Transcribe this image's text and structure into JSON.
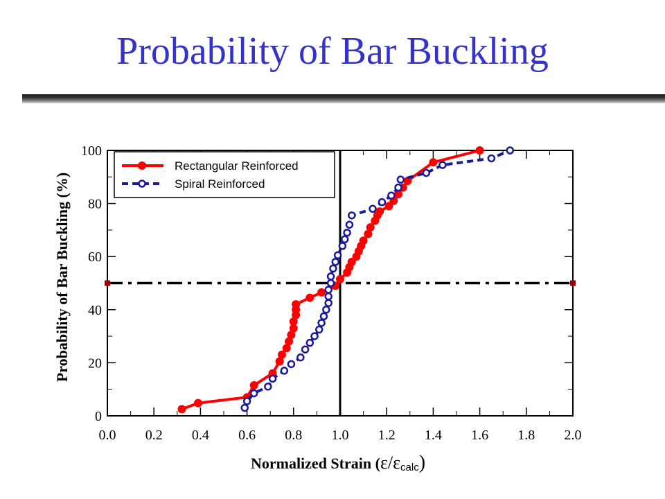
{
  "slide": {
    "title": "Probability of Bar Buckling"
  },
  "chart_data": {
    "type": "line",
    "title": "",
    "xlabel_main": "Normalized Strain (",
    "xlabel_eps": "ε",
    "xlabel_slash": "/",
    "xlabel_eps2": "ε",
    "xlabel_sub": "calc",
    "xlabel_close": ")",
    "ylabel": "Probability of Bar Buckling (%)",
    "xlim": [
      0.0,
      2.0
    ],
    "ylim": [
      0,
      100
    ],
    "x_ticks": [
      "0.0",
      "0.2",
      "0.4",
      "0.6",
      "0.8",
      "1.0",
      "1.2",
      "1.4",
      "1.6",
      "1.8",
      "2.0"
    ],
    "y_ticks": [
      "0",
      "20",
      "40",
      "60",
      "80",
      "100"
    ],
    "legend_position": "top-left",
    "reference_lines": {
      "vertical_x": 1.0,
      "horizontal_y": 50,
      "horizontal_style": "dash-dot",
      "horizontal_marker_color": "#990000"
    },
    "series": [
      {
        "name": "Rectangular Reinforced",
        "color": "#ff0000",
        "line_style": "solid",
        "marker": "filled-circle",
        "points": [
          [
            0.32,
            2.5
          ],
          [
            0.39,
            4.8
          ],
          [
            0.6,
            7.0
          ],
          [
            0.63,
            11.5
          ],
          [
            0.71,
            16.0
          ],
          [
            0.74,
            20.5
          ],
          [
            0.75,
            23.0
          ],
          [
            0.77,
            25.5
          ],
          [
            0.78,
            28.0
          ],
          [
            0.79,
            30.5
          ],
          [
            0.8,
            33.0
          ],
          [
            0.8,
            35.5
          ],
          [
            0.81,
            38.0
          ],
          [
            0.81,
            40.0
          ],
          [
            0.81,
            42.0
          ],
          [
            0.87,
            44.5
          ],
          [
            0.92,
            46.5
          ],
          [
            0.98,
            49.0
          ],
          [
            1.0,
            51.5
          ],
          [
            1.03,
            54.0
          ],
          [
            1.04,
            56.0
          ],
          [
            1.05,
            58.0
          ],
          [
            1.07,
            60.0
          ],
          [
            1.08,
            62.0
          ],
          [
            1.09,
            64.0
          ],
          [
            1.1,
            66.0
          ],
          [
            1.12,
            68.5
          ],
          [
            1.13,
            71.0
          ],
          [
            1.15,
            73.5
          ],
          [
            1.16,
            75.5
          ],
          [
            1.17,
            77.0
          ],
          [
            1.21,
            79.0
          ],
          [
            1.23,
            81.0
          ],
          [
            1.25,
            83.5
          ],
          [
            1.27,
            86.0
          ],
          [
            1.29,
            88.5
          ],
          [
            1.4,
            95.5
          ],
          [
            1.6,
            100.0
          ]
        ]
      },
      {
        "name": "Spiral Reinforced",
        "color": "#1a1a99",
        "line_style": "dashed",
        "marker": "open-circle",
        "points": [
          [
            0.59,
            3.0
          ],
          [
            0.6,
            5.5
          ],
          [
            0.63,
            8.5
          ],
          [
            0.69,
            11.0
          ],
          [
            0.71,
            14.0
          ],
          [
            0.76,
            17.0
          ],
          [
            0.79,
            19.5
          ],
          [
            0.83,
            22.0
          ],
          [
            0.85,
            25.0
          ],
          [
            0.87,
            27.5
          ],
          [
            0.89,
            30.0
          ],
          [
            0.91,
            32.5
          ],
          [
            0.92,
            35.0
          ],
          [
            0.93,
            37.5
          ],
          [
            0.94,
            40.0
          ],
          [
            0.95,
            42.5
          ],
          [
            0.95,
            45.0
          ],
          [
            0.95,
            47.5
          ],
          [
            0.96,
            50.0
          ],
          [
            0.96,
            52.5
          ],
          [
            0.97,
            55.5
          ],
          [
            0.98,
            58.0
          ],
          [
            0.99,
            60.5
          ],
          [
            1.01,
            64.0
          ],
          [
            1.02,
            66.5
          ],
          [
            1.03,
            69.0
          ],
          [
            1.04,
            72.0
          ],
          [
            1.05,
            75.5
          ],
          [
            1.14,
            78.0
          ],
          [
            1.18,
            80.5
          ],
          [
            1.22,
            83.0
          ],
          [
            1.25,
            86.0
          ],
          [
            1.26,
            89.0
          ],
          [
            1.37,
            91.5
          ],
          [
            1.44,
            94.5
          ],
          [
            1.65,
            97.0
          ],
          [
            1.73,
            100.0
          ]
        ]
      }
    ]
  }
}
